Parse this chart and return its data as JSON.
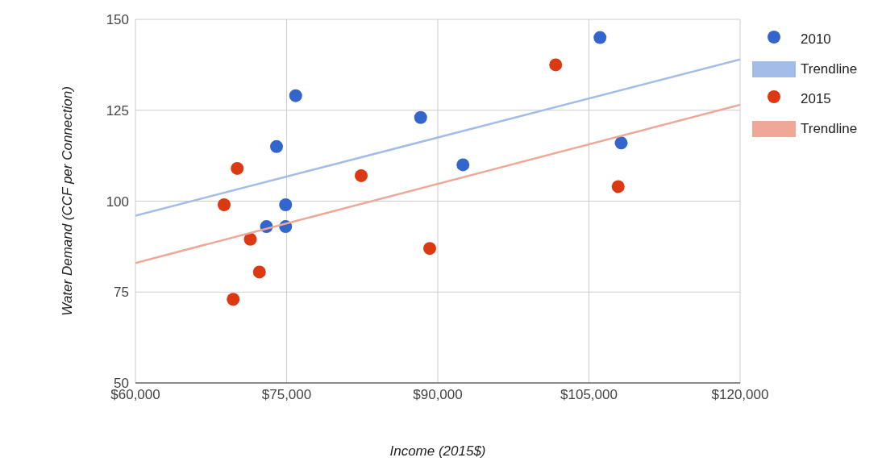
{
  "chart_data": {
    "type": "scatter",
    "xlabel": "Income (2015$)",
    "ylabel": "Water Demand (CCF per Connection)",
    "xlim": [
      60000,
      120000
    ],
    "xticks": [
      {
        "value": 60000,
        "label": "$60,000"
      },
      {
        "value": 75000,
        "label": "$75,000"
      },
      {
        "value": 90000,
        "label": "$90,000"
      },
      {
        "value": 105000,
        "label": "$105,000"
      },
      {
        "value": 120000,
        "label": "$120,000"
      }
    ],
    "ylim": [
      50,
      150
    ],
    "yticks": [
      50,
      75,
      100,
      125,
      150
    ],
    "grid": true,
    "legend": "right",
    "series": [
      {
        "name": "2010",
        "marker": "circle",
        "color": "#3366cc",
        "x": [
          75900,
          74000,
          74900,
          73000,
          74900,
          88300,
          92500,
          106100,
          108200
        ],
        "values": [
          129,
          115,
          99,
          93,
          93,
          123,
          110,
          145,
          116
        ]
      },
      {
        "name": "Trendline",
        "type": "line",
        "marker": "none",
        "line_style": "solid",
        "color": "#a4bde8",
        "x": [
          60000,
          120000
        ],
        "values": [
          96,
          139
        ]
      },
      {
        "name": "2015",
        "marker": "circle",
        "color": "#dc3912",
        "x": [
          68800,
          70100,
          71400,
          72300,
          69700,
          82400,
          89200,
          101700,
          107900
        ],
        "values": [
          99,
          109,
          89.5,
          80.5,
          73,
          107,
          87,
          137.5,
          104
        ]
      },
      {
        "name": "Trendline",
        "type": "line",
        "marker": "none",
        "line_style": "solid",
        "color": "#efa797",
        "x": [
          60000,
          120000
        ],
        "values": [
          83,
          126.5
        ]
      }
    ]
  }
}
